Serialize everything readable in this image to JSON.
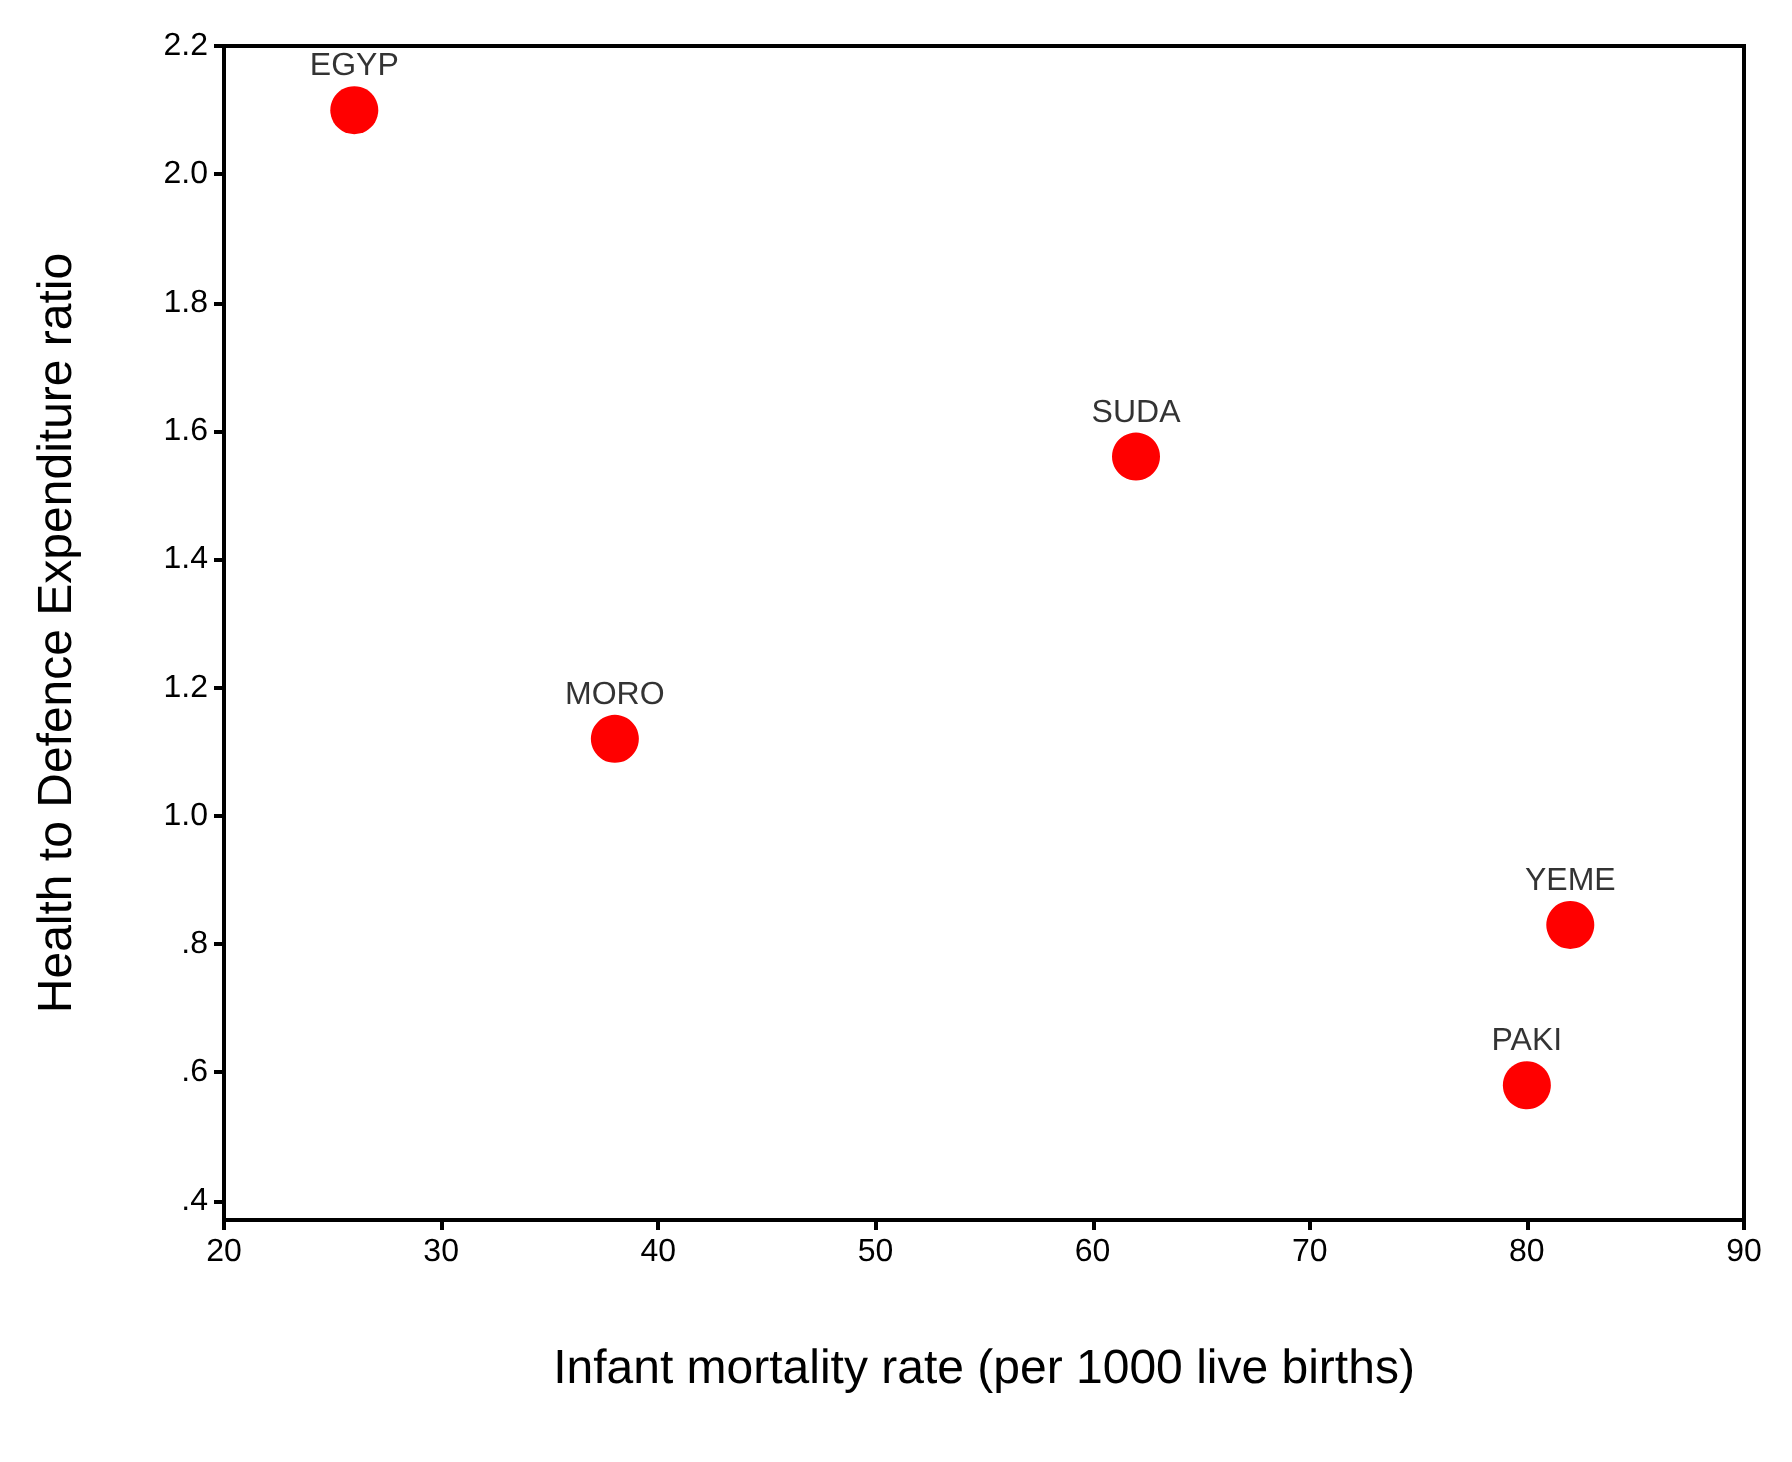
{
  "chart_data": {
    "type": "scatter",
    "xlabel": "Infant mortality rate (per 1000 live births)",
    "ylabel": "Health to Defence Expenditure ratio",
    "x": [
      26,
      38,
      62,
      82,
      80
    ],
    "series": [
      {
        "color": "#ff0000",
        "values": [
          2.1,
          1.12,
          1.56,
          0.83,
          0.58
        ]
      }
    ],
    "xlim": [
      20,
      90
    ],
    "xticks": [
      20,
      30,
      40,
      50,
      60,
      70,
      80,
      90
    ],
    "ylim": [
      0.37,
      2.2
    ],
    "yticks": [
      {
        "value": 0.4,
        "label": ".4"
      },
      {
        "value": 0.6,
        "label": ".6"
      },
      {
        "value": 0.8,
        "label": ".8"
      },
      {
        "value": 1.0,
        "label": "1.0"
      },
      {
        "value": 1.2,
        "label": "1.2"
      },
      {
        "value": 1.4,
        "label": "1.4"
      },
      {
        "value": 1.6,
        "label": "1.6"
      },
      {
        "value": 1.8,
        "label": "1.8"
      },
      {
        "value": 2.0,
        "label": "2.0"
      },
      {
        "value": 2.2,
        "label": "2.2"
      }
    ],
    "annotations": [
      {
        "text": "EGYP",
        "x": 26,
        "y": 2.1
      },
      {
        "text": "MORO",
        "x": 38,
        "y": 1.12
      },
      {
        "text": "SUDA",
        "x": 62,
        "y": 1.56
      },
      {
        "text": "YEME",
        "x": 82,
        "y": 0.83
      },
      {
        "text": "PAKI",
        "x": 80,
        "y": 0.58
      }
    ],
    "grid": false,
    "marker": "circle"
  }
}
